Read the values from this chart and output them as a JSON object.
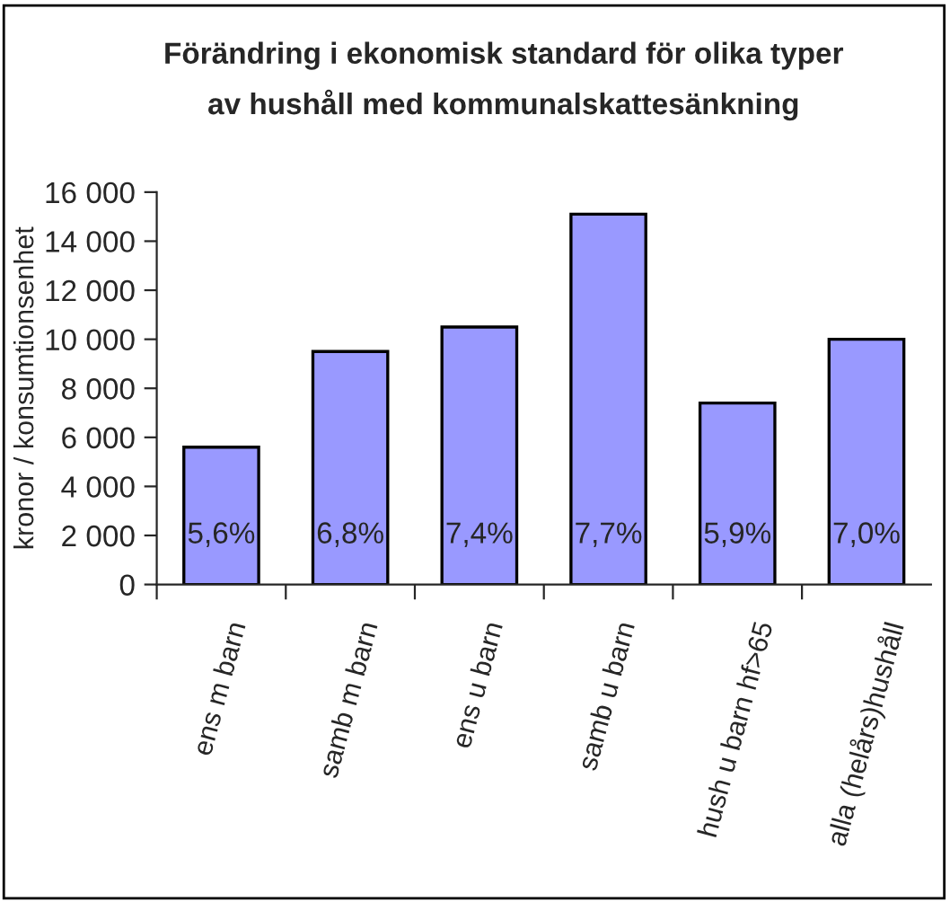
{
  "chart_data": {
    "type": "bar",
    "title": "Förändring i ekonomisk standard för olika typer\nav hushåll med kommunalskattesänkning",
    "ylabel": "kronor / konsumtionsenhet",
    "categories": [
      "ens m barn",
      "samb m barn",
      "ens u barn",
      "samb u barn",
      "hush u barn hf>65",
      "alla (helårs)hushåll"
    ],
    "values": [
      5600,
      9500,
      10500,
      15100,
      7400,
      10000
    ],
    "color": "#9999ff",
    "ylim": [
      0,
      16000
    ],
    "yticks": [
      {
        "value": 0,
        "label": "0"
      },
      {
        "value": 2000,
        "label": "2 000"
      },
      {
        "value": 4000,
        "label": "4 000"
      },
      {
        "value": 6000,
        "label": "6 000"
      },
      {
        "value": 8000,
        "label": "8 000"
      },
      {
        "value": 10000,
        "label": "10 000"
      },
      {
        "value": 12000,
        "label": "12 000"
      },
      {
        "value": 14000,
        "label": "14 000"
      },
      {
        "value": 16000,
        "label": "16 000"
      }
    ],
    "annotations": [
      "5,6%",
      "6,8%",
      "7,4%",
      "7,7%",
      "5,9%",
      "7,0%"
    ],
    "grid": false,
    "legend": false
  }
}
